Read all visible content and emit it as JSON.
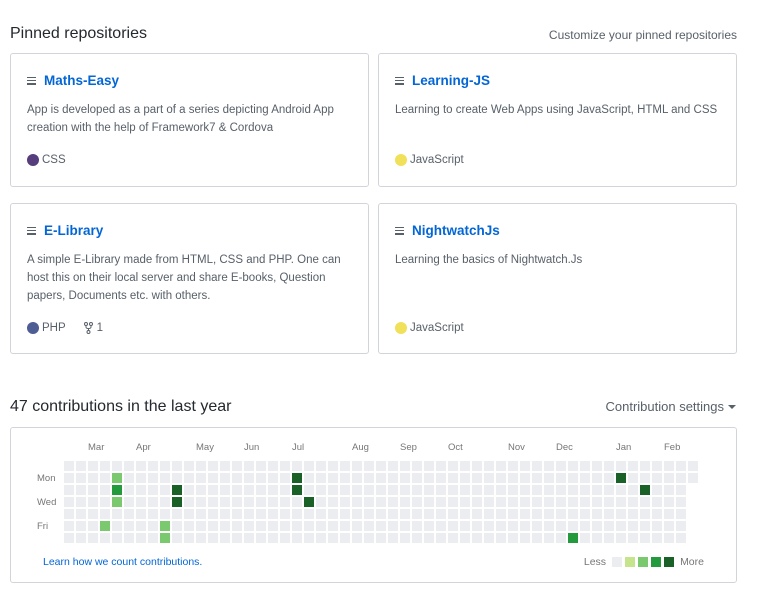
{
  "pinned": {
    "title": "Pinned repositories",
    "customize_label": "Customize your pinned repositories",
    "repos": [
      {
        "name": "Maths-Easy",
        "description": "App is developed as a part of a series depicting Android App creation with the help of Framework7 & Cordova",
        "language": "CSS",
        "language_color": "#563d7c"
      },
      {
        "name": "Learning-JS",
        "description": "Learning to create Web Apps using JavaScript, HTML and CSS",
        "language": "JavaScript",
        "language_color": "#f1e05a"
      },
      {
        "name": "E-Library",
        "description": "A simple E-Library made from HTML, CSS and PHP. One can host this on their local server and share E-books, Question papers, Documents etc. with others.",
        "language": "PHP",
        "language_color": "#4F5D95",
        "forks": "1"
      },
      {
        "name": "NightwatchJs",
        "description": "Learning the basics of Nightwatch.Js",
        "language": "JavaScript",
        "language_color": "#f1e05a"
      }
    ]
  },
  "contributions": {
    "title": "47 contributions in the last year",
    "settings_label": "Contribution settings",
    "months": [
      "Mar",
      "Apr",
      "May",
      "Jun",
      "Jul",
      "Aug",
      "Sep",
      "Oct",
      "Nov",
      "Dec",
      "Jan",
      "Feb"
    ],
    "days": [
      "Mon",
      "Wed",
      "Fri"
    ],
    "learn_link": "Learn how we count contributions.",
    "legend_less": "Less",
    "legend_more": "More",
    "colors": [
      "#ebedf0",
      "#c6e48b",
      "#7bc96f",
      "#239a3b",
      "#196127"
    ],
    "contributions_by_week_and_day": [
      {
        "week": 4,
        "day": 1,
        "level": 2
      },
      {
        "week": 4,
        "day": 2,
        "level": 3
      },
      {
        "week": 4,
        "day": 3,
        "level": 2
      },
      {
        "week": 3,
        "day": 5,
        "level": 2
      },
      {
        "week": 3,
        "day": 7,
        "level": 2
      },
      {
        "week": 8,
        "day": 5,
        "level": 2
      },
      {
        "week": 8,
        "day": 6,
        "level": 2
      },
      {
        "week": 8,
        "day": 7,
        "level": 2
      },
      {
        "week": 9,
        "day": 2,
        "level": 4
      },
      {
        "week": 9,
        "day": 3,
        "level": 4
      },
      {
        "week": 19,
        "day": 1,
        "level": 4
      },
      {
        "week": 19,
        "day": 2,
        "level": 4
      },
      {
        "week": 20,
        "day": 3,
        "level": 4
      },
      {
        "week": 42,
        "day": 6,
        "level": 3
      },
      {
        "week": 46,
        "day": 1,
        "level": 4
      },
      {
        "week": 48,
        "day": 2,
        "level": 4
      }
    ]
  }
}
